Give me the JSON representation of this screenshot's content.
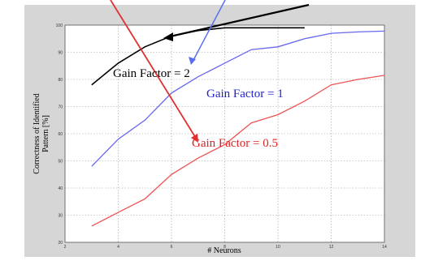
{
  "chart_data": {
    "type": "line",
    "title": "",
    "xlabel": "# Neurons",
    "ylabel_lines": [
      "Correctness of Identified",
      "Pattern [%]"
    ],
    "xlim": [
      2,
      14
    ],
    "ylim": [
      20,
      100
    ],
    "x_ticks": [
      "2",
      "4",
      "6",
      "8",
      "10",
      "12",
      "14"
    ],
    "y_ticks": [
      "20",
      "30",
      "40",
      "50",
      "60",
      "70",
      "80",
      "90",
      "100"
    ],
    "grid": true,
    "legend": "none",
    "series": [
      {
        "name": "Gain Factor = 2",
        "color": "#000000",
        "x": [
          3,
          4,
          5,
          6,
          7,
          8,
          9,
          10,
          11
        ],
        "y": [
          78,
          86,
          92,
          96,
          98,
          99,
          99,
          99,
          99
        ]
      },
      {
        "name": "Gain Factor = 1",
        "color": "#6666ee",
        "x": [
          3,
          4,
          5,
          6,
          7,
          8,
          9,
          10,
          11,
          12,
          13,
          14
        ],
        "y": [
          48,
          58,
          65,
          75,
          81,
          86,
          91,
          92,
          95,
          97,
          97.5,
          97.8
        ]
      },
      {
        "name": "Gain Factor = 0.5",
        "color": "#ee5555",
        "x": [
          3,
          4,
          5,
          6,
          7,
          8,
          9,
          10,
          11,
          12,
          13,
          14
        ],
        "y": [
          26,
          31,
          36,
          45,
          51,
          56,
          64,
          67,
          72,
          78,
          80,
          81.5
        ]
      }
    ],
    "annotations": [
      {
        "text": "Gain Factor = 2",
        "color": "#000000"
      },
      {
        "text": "Gain Factor = 1",
        "color": "#2222cc"
      },
      {
        "text": "Gain Factor = 0.5",
        "color": "#dd2222"
      }
    ]
  }
}
